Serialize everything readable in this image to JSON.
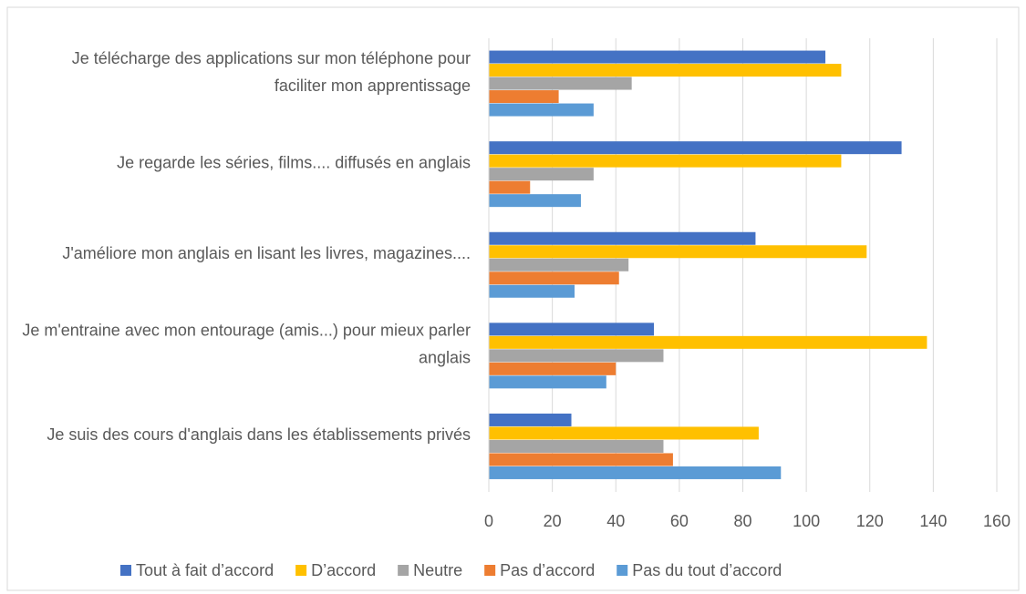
{
  "chart_data": {
    "type": "bar",
    "orientation": "horizontal",
    "categories": [
      "Je télécharge des applications sur mon téléphone pour faciliter mon apprentissage",
      "Je regarde les séries, films.... diffusés en anglais",
      "J'améliore mon anglais en lisant les livres, magazines....",
      "Je m'entraine avec mon entourage (amis...) pour mieux parler anglais",
      "Je suis des cours d'anglais dans les établissements privés"
    ],
    "series": [
      {
        "name": "Tout à fait d’accord",
        "color": "#4472c4",
        "values": [
          106,
          130,
          84,
          52,
          26
        ]
      },
      {
        "name": "D’accord",
        "color": "#ffc000",
        "values": [
          111,
          111,
          119,
          138,
          85
        ]
      },
      {
        "name": "Neutre",
        "color": "#a5a5a5",
        "values": [
          45,
          33,
          44,
          55,
          55
        ]
      },
      {
        "name": "Pas d’accord",
        "color": "#ed7d31",
        "values": [
          22,
          13,
          41,
          40,
          58
        ]
      },
      {
        "name": "Pas du tout d’accord",
        "color": "#5b9bd5",
        "values": [
          33,
          29,
          27,
          37,
          92
        ]
      }
    ],
    "xlim": [
      0,
      160
    ],
    "xticks": [
      0,
      20,
      40,
      60,
      80,
      100,
      120,
      140,
      160
    ],
    "grid": true,
    "legend": "bottom"
  }
}
